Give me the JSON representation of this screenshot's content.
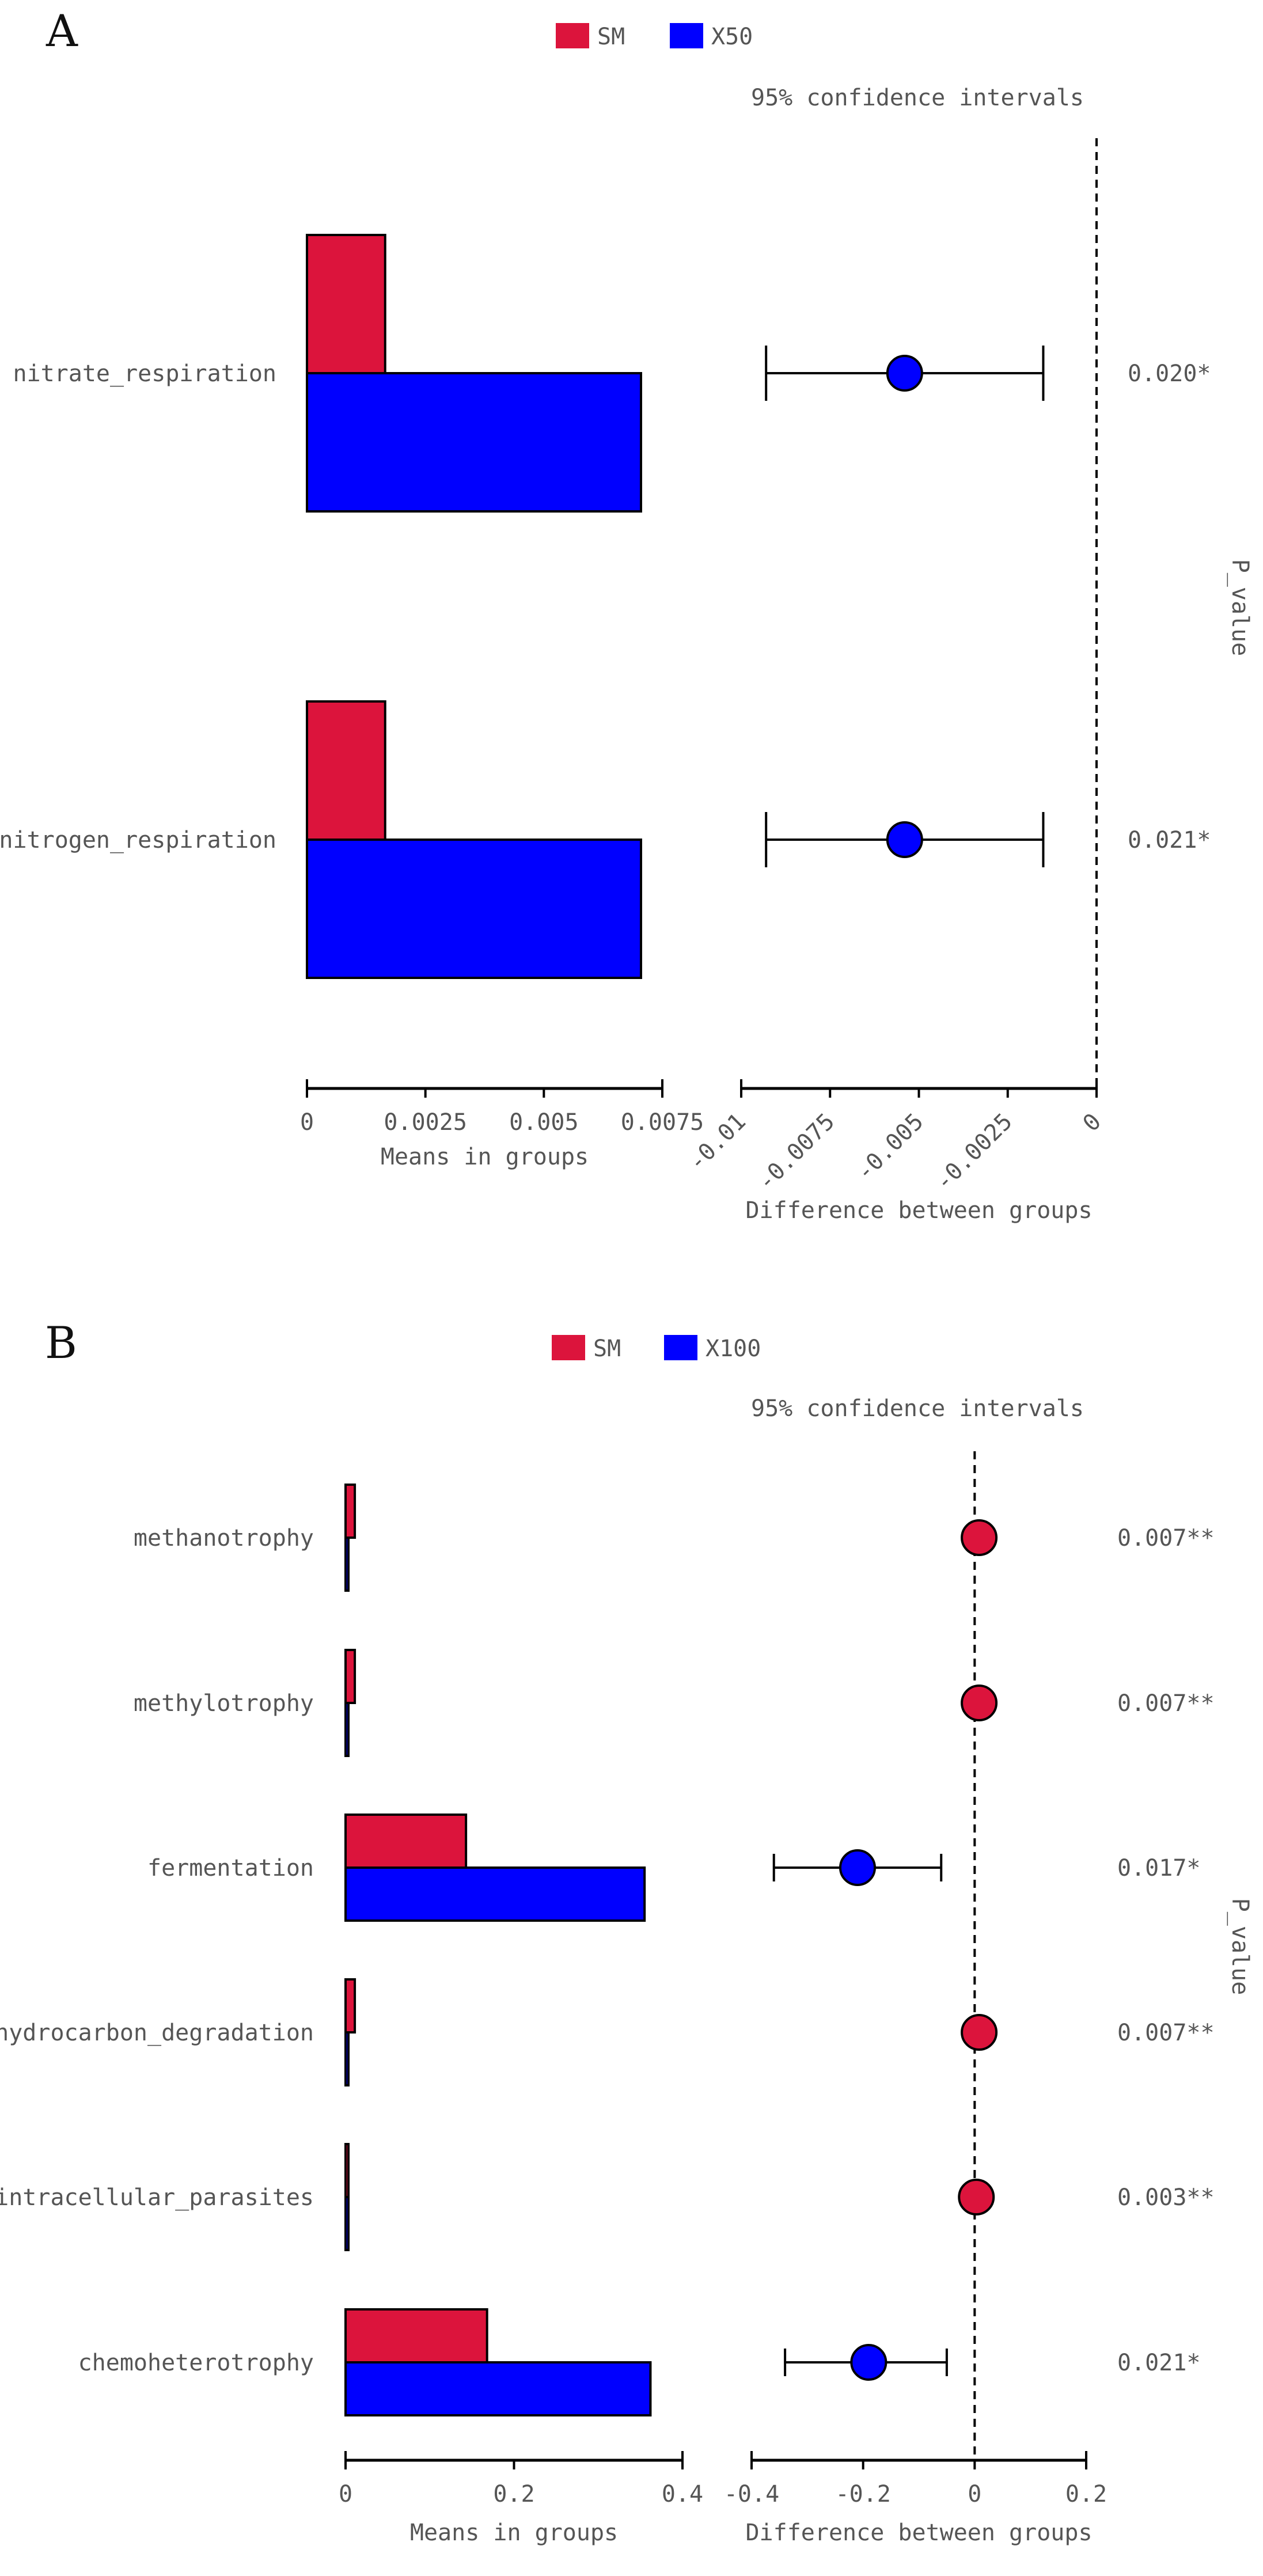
{
  "chart_data": [
    {
      "panel": "A",
      "type": "bar",
      "legend": [
        {
          "name": "SM",
          "color": "#dc143c"
        },
        {
          "name": "X50",
          "color": "#0000ff"
        }
      ],
      "legend_placement": "top",
      "categories": [
        "nitrate_respiration",
        "nitrogen_respiration"
      ],
      "series": [
        {
          "name": "SM",
          "values": [
            0.00165,
            0.00165
          ]
        },
        {
          "name": "X50",
          "values": [
            0.00705,
            0.00705
          ]
        }
      ],
      "xlabel": "Means in groups",
      "xlim": [
        0,
        0.0075
      ],
      "xticks": [
        0,
        0.0025,
        0.005,
        0.0075
      ],
      "xtick_labels": [
        "0",
        "0.0025",
        "0.005",
        "0.0075"
      ],
      "ci": {
        "title": "95% confidence intervals",
        "xlabel": "Difference between groups",
        "xlim": [
          -0.01,
          0
        ],
        "xticks": [
          -0.01,
          -0.0075,
          -0.005,
          -0.0025,
          0
        ],
        "xtick_labels": [
          "-0.01",
          "-0.0075",
          "-0.005",
          "-0.0025",
          "0"
        ],
        "points": [
          {
            "category": "nitrate_respiration",
            "estimate": -0.0054,
            "lower": -0.0093,
            "upper": -0.0015,
            "color": "#0000ff"
          },
          {
            "category": "nitrogen_respiration",
            "estimate": -0.0054,
            "lower": -0.0093,
            "upper": -0.0015,
            "color": "#0000ff"
          }
        ]
      },
      "p_values": [
        "0.020*",
        "0.021*"
      ],
      "p_label": "P_value"
    },
    {
      "panel": "B",
      "type": "bar",
      "legend": [
        {
          "name": "SM",
          "color": "#dc143c"
        },
        {
          "name": "X100",
          "color": "#0000ff"
        }
      ],
      "legend_placement": "top",
      "categories": [
        "methanotrophy",
        "methylotrophy",
        "fermentation",
        "hydrocarbon_degradation",
        "intracellular_parasites",
        "chemoheterotrophy"
      ],
      "series": [
        {
          "name": "SM",
          "values": [
            0.011,
            0.011,
            0.143,
            0.011,
            0.002,
            0.168
          ]
        },
        {
          "name": "X100",
          "values": [
            0.001,
            0.001,
            0.355,
            0.001,
            0.001,
            0.362
          ]
        }
      ],
      "xlabel": "Means in groups",
      "xlim": [
        0,
        0.4
      ],
      "xticks": [
        0,
        0.2,
        0.4
      ],
      "xtick_labels": [
        "0",
        "0.2",
        "0.4"
      ],
      "ci": {
        "title": "95% confidence intervals",
        "xlabel": "Difference between groups",
        "xlim": [
          -0.4,
          0.2
        ],
        "xticks": [
          -0.4,
          -0.2,
          0,
          0.2
        ],
        "xtick_labels": [
          "-0.4",
          "-0.2",
          "0",
          "0.2"
        ],
        "points": [
          {
            "category": "methanotrophy",
            "estimate": 0.008,
            "lower": 0.005,
            "upper": 0.011,
            "color": "#dc143c"
          },
          {
            "category": "methylotrophy",
            "estimate": 0.008,
            "lower": 0.005,
            "upper": 0.011,
            "color": "#dc143c"
          },
          {
            "category": "fermentation",
            "estimate": -0.21,
            "lower": -0.36,
            "upper": -0.06,
            "color": "#0000ff"
          },
          {
            "category": "hydrocarbon_degradation",
            "estimate": 0.008,
            "lower": 0.005,
            "upper": 0.011,
            "color": "#dc143c"
          },
          {
            "category": "intracellular_parasites",
            "estimate": 0.003,
            "lower": 0.001,
            "upper": 0.005,
            "color": "#dc143c"
          },
          {
            "category": "chemoheterotrophy",
            "estimate": -0.19,
            "lower": -0.34,
            "upper": -0.05,
            "color": "#0000ff"
          }
        ]
      },
      "p_values": [
        "0.007**",
        "0.007**",
        "0.017*",
        "0.007**",
        "0.003**",
        "0.021*"
      ],
      "p_label": "P_value"
    }
  ]
}
